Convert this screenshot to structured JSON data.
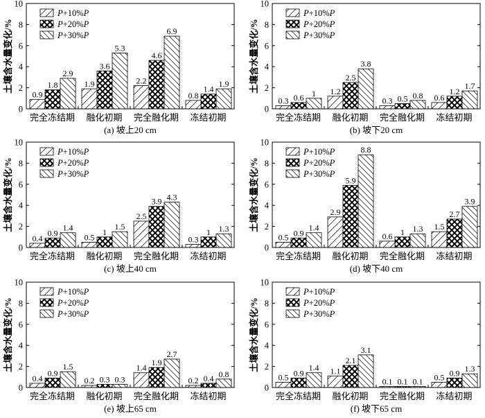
{
  "legend_labels": [
    "P+10%P",
    "P+20%P",
    "P+30%P"
  ],
  "chart_data": [
    {
      "type": "bar",
      "title": "(a) 坡上20 cm",
      "ylabel": "土壤含水量变化/%",
      "xlabel": "",
      "ylim": [
        0,
        10
      ],
      "yticks": [
        0,
        2,
        4,
        6,
        8,
        10
      ],
      "categories": [
        "完全冻结期",
        "融化初期",
        "完全融化期",
        "冻结初期"
      ],
      "series": [
        {
          "name": "P+10%P",
          "values": [
            0.9,
            1.9,
            2.2,
            0.8
          ]
        },
        {
          "name": "P+20%P",
          "values": [
            1.8,
            3.6,
            4.6,
            1.4
          ]
        },
        {
          "name": "P+30%P",
          "values": [
            2.9,
            5.3,
            6.9,
            1.9
          ]
        }
      ],
      "legend": "top-left",
      "grid": false
    },
    {
      "type": "bar",
      "title": "(b) 坡下20 cm",
      "ylabel": "土壤含水量变化/%",
      "xlabel": "",
      "ylim": [
        0,
        10
      ],
      "yticks": [
        0,
        2,
        4,
        6,
        8,
        10
      ],
      "categories": [
        "完全冻结期",
        "融化初期",
        "完全融化期",
        "冻结初期"
      ],
      "series": [
        {
          "name": "P+10%P",
          "values": [
            0.3,
            1.2,
            0.3,
            0.6
          ]
        },
        {
          "name": "P+20%P",
          "values": [
            0.6,
            2.5,
            0.5,
            1.2
          ]
        },
        {
          "name": "P+30%P",
          "values": [
            1.0,
            3.8,
            0.8,
            1.7
          ]
        }
      ],
      "legend": "top-left",
      "grid": false
    },
    {
      "type": "bar",
      "title": "(c) 坡上40 cm",
      "ylabel": "土壤含水量变化/%",
      "xlabel": "",
      "ylim": [
        0,
        10
      ],
      "yticks": [
        0,
        2,
        4,
        6,
        8,
        10
      ],
      "categories": [
        "完全冻结期",
        "融化初期",
        "完全融化期",
        "冻结初期"
      ],
      "series": [
        {
          "name": "P+10%P",
          "values": [
            0.4,
            0.5,
            2.5,
            0.3
          ]
        },
        {
          "name": "P+20%P",
          "values": [
            0.9,
            1.0,
            3.9,
            1.0
          ]
        },
        {
          "name": "P+30%P",
          "values": [
            1.4,
            1.5,
            4.3,
            1.3
          ]
        }
      ],
      "legend": "top-left",
      "grid": false
    },
    {
      "type": "bar",
      "title": "(d) 坡下40 cm",
      "ylabel": "土壤含水量变化/%",
      "xlabel": "",
      "ylim": [
        0,
        10
      ],
      "yticks": [
        0,
        2,
        4,
        6,
        8,
        10
      ],
      "categories": [
        "完全冻结期",
        "融化初期",
        "完全融化期",
        "冻结初期"
      ],
      "series": [
        {
          "name": "P+10%P",
          "values": [
            0.5,
            2.9,
            0.6,
            1.5
          ]
        },
        {
          "name": "P+20%P",
          "values": [
            0.9,
            5.9,
            1.0,
            2.7
          ]
        },
        {
          "name": "P+30%P",
          "values": [
            1.4,
            8.8,
            1.3,
            3.9
          ]
        }
      ],
      "legend": "top-left",
      "grid": false
    },
    {
      "type": "bar",
      "title": "(e) 坡上65 cm",
      "ylabel": "土壤含水量变化/%",
      "xlabel": "",
      "ylim": [
        0,
        10
      ],
      "yticks": [
        0,
        2,
        4,
        6,
        8,
        10
      ],
      "categories": [
        "完全冻结期",
        "融化初期",
        "完全融化期",
        "冻结初期"
      ],
      "series": [
        {
          "name": "P+10%P",
          "values": [
            0.4,
            0.2,
            1.4,
            0.2
          ]
        },
        {
          "name": "P+20%P",
          "values": [
            0.9,
            0.3,
            1.9,
            0.4
          ]
        },
        {
          "name": "P+30%P",
          "values": [
            1.5,
            0.3,
            2.7,
            0.8
          ]
        }
      ],
      "legend": "top-left",
      "grid": false
    },
    {
      "type": "bar",
      "title": "(f) 坡下65 cm",
      "ylabel": "土壤含水量变化/%",
      "xlabel": "",
      "ylim": [
        0,
        10
      ],
      "yticks": [
        0,
        2,
        4,
        6,
        8,
        10
      ],
      "categories": [
        "完全冻结期",
        "融化初期",
        "完全融化期",
        "冻结初期"
      ],
      "series": [
        {
          "name": "P+10%P",
          "values": [
            0.5,
            1.1,
            0.1,
            0.5
          ]
        },
        {
          "name": "P+20%P",
          "values": [
            0.9,
            2.1,
            0.1,
            0.9
          ]
        },
        {
          "name": "P+30%P",
          "values": [
            1.4,
            3.1,
            0.1,
            1.3
          ]
        }
      ],
      "legend": "top-left",
      "grid": false
    }
  ]
}
